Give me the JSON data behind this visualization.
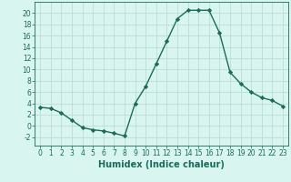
{
  "x": [
    0,
    1,
    2,
    3,
    4,
    5,
    6,
    7,
    8,
    9,
    10,
    11,
    12,
    13,
    14,
    15,
    16,
    17,
    18,
    19,
    20,
    21,
    22,
    23
  ],
  "y": [
    3.3,
    3.1,
    2.3,
    1.0,
    -0.3,
    -0.7,
    -0.9,
    -1.3,
    -1.8,
    4.0,
    7.0,
    11.0,
    15.0,
    19.0,
    20.5,
    20.5,
    20.5,
    16.5,
    9.5,
    7.5,
    6.0,
    5.0,
    4.5,
    3.5
  ],
  "line_color": "#1a6b5a",
  "marker": "D",
  "markersize": 2.2,
  "linewidth": 1.0,
  "xlabel": "Humidex (Indice chaleur)",
  "xlabel_fontsize": 7,
  "bg_color": "#d8f5f0",
  "grid_color": "#b8d8d0",
  "xlim": [
    -0.5,
    23.5
  ],
  "ylim": [
    -3.5,
    22
  ],
  "yticks": [
    -2,
    0,
    2,
    4,
    6,
    8,
    10,
    12,
    14,
    16,
    18,
    20
  ],
  "xticks": [
    0,
    1,
    2,
    3,
    4,
    5,
    6,
    7,
    8,
    9,
    10,
    11,
    12,
    13,
    14,
    15,
    16,
    17,
    18,
    19,
    20,
    21,
    22,
    23
  ],
  "tick_fontsize": 5.5
}
